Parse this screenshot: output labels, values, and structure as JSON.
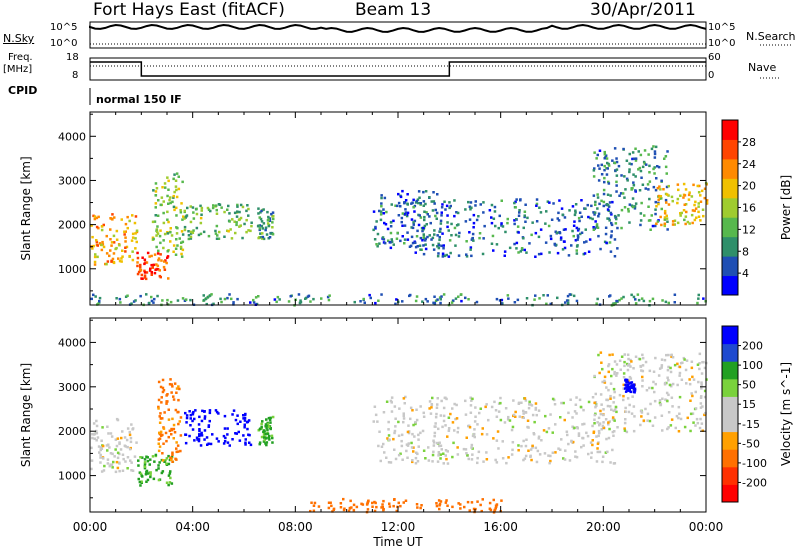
{
  "header": {
    "station": "Fort Hays East (fitACF)",
    "beam": "Beam 13",
    "date": "30/Apr/2011"
  },
  "status_panels": {
    "nsky_label": "N.Sky",
    "nsearch_label": "N.Search",
    "nsky_ticks": [
      "10^5",
      "10^0"
    ],
    "nsearch_ticks": [
      "10^5",
      "10^0"
    ],
    "freq_label_1": "Freq.",
    "freq_label_2": "[MHz]",
    "freq_ticks": [
      "18",
      "8"
    ],
    "nave_label": "Nave",
    "nave_ticks": [
      "60",
      "0"
    ],
    "cpid_label": "CPID",
    "cpid_value": "normal 150 IF"
  },
  "colors": {
    "power_scale": [
      "#0000ff",
      "#1f4fb4",
      "#2f8f6a",
      "#57b84d",
      "#9fcc2f",
      "#f0c000",
      "#ff8a00",
      "#ff4400",
      "#ff0000"
    ],
    "velocity_scale": [
      "#0000ff",
      "#1f4ad0",
      "#22a022",
      "#7ad23c",
      "#c8c8c8",
      "#c8c8c8",
      "#ffa000",
      "#ff7000",
      "#ff3000",
      "#ff0000"
    ]
  },
  "chart_data": [
    {
      "type": "heatmap",
      "panel": "power",
      "ylabel": "Slant Range [km]",
      "y_ticks": [
        1000,
        2000,
        3000,
        4000
      ],
      "ylim": [
        180,
        4550
      ],
      "colorbar_label": "Power [dB]",
      "colorbar_ticks": [
        "28",
        "24",
        "20",
        "16",
        "12",
        "8",
        "4"
      ],
      "colorbar_range": [
        0,
        30
      ],
      "echo_regions": [
        {
          "t": [
            0.0,
            1.8
          ],
          "r": [
            1100,
            2300
          ],
          "power": 20
        },
        {
          "t": [
            1.8,
            3.0
          ],
          "r": [
            800,
            1400
          ],
          "power": 26
        },
        {
          "t": [
            2.4,
            3.6
          ],
          "r": [
            1300,
            3200
          ],
          "power": 14
        },
        {
          "t": [
            3.6,
            6.3
          ],
          "r": [
            1700,
            2500
          ],
          "power": 12
        },
        {
          "t": [
            6.5,
            7.1
          ],
          "r": [
            1700,
            2400
          ],
          "power": 10
        },
        {
          "t": [
            11.0,
            13.5
          ],
          "r": [
            1500,
            2800
          ],
          "power": 6
        },
        {
          "t": [
            12.5,
            20.5
          ],
          "r": [
            1300,
            2600
          ],
          "power": 6
        },
        {
          "t": [
            19.5,
            22.5
          ],
          "r": [
            1900,
            3800
          ],
          "power": 8
        },
        {
          "t": [
            22.0,
            24.0
          ],
          "r": [
            2000,
            3000
          ],
          "power": 18
        },
        {
          "t": [
            0.0,
            24.0
          ],
          "r": [
            200,
            450
          ],
          "power": 8
        }
      ]
    },
    {
      "type": "heatmap",
      "panel": "velocity",
      "ylabel": "Slant Range [km]",
      "xlabel": "Time UT",
      "x_ticks": [
        "00:00",
        "04:00",
        "08:00",
        "12:00",
        "16:00",
        "20:00",
        "00:00"
      ],
      "y_ticks": [
        1000,
        2000,
        3000,
        4000
      ],
      "ylim": [
        180,
        4550
      ],
      "colorbar_label": "Velocity [m s^-1]",
      "colorbar_ticks": [
        "200",
        "100",
        "50",
        "15",
        "-15",
        "-50",
        "-100",
        "-200"
      ],
      "colorbar_range": [
        -250,
        250
      ],
      "echo_regions": [
        {
          "t": [
            0.0,
            1.8
          ],
          "r": [
            1100,
            2300
          ],
          "velocity": 0
        },
        {
          "t": [
            1.8,
            3.2
          ],
          "r": [
            800,
            1500
          ],
          "velocity": 40
        },
        {
          "t": [
            2.6,
            3.5
          ],
          "r": [
            1300,
            3200
          ],
          "velocity": -60
        },
        {
          "t": [
            3.6,
            6.3
          ],
          "r": [
            1700,
            2500
          ],
          "velocity": 220
        },
        {
          "t": [
            6.5,
            7.1
          ],
          "r": [
            1700,
            2400
          ],
          "velocity": 40
        },
        {
          "t": [
            11.0,
            20.5
          ],
          "r": [
            1300,
            2800
          ],
          "velocity": 0
        },
        {
          "t": [
            19.5,
            24.0
          ],
          "r": [
            2000,
            3800
          ],
          "velocity": 0
        },
        {
          "t": [
            20.8,
            21.2
          ],
          "r": [
            2900,
            3200
          ],
          "velocity": 220
        },
        {
          "t": [
            8.5,
            16.0
          ],
          "r": [
            200,
            500
          ],
          "velocity": -80
        }
      ]
    }
  ]
}
